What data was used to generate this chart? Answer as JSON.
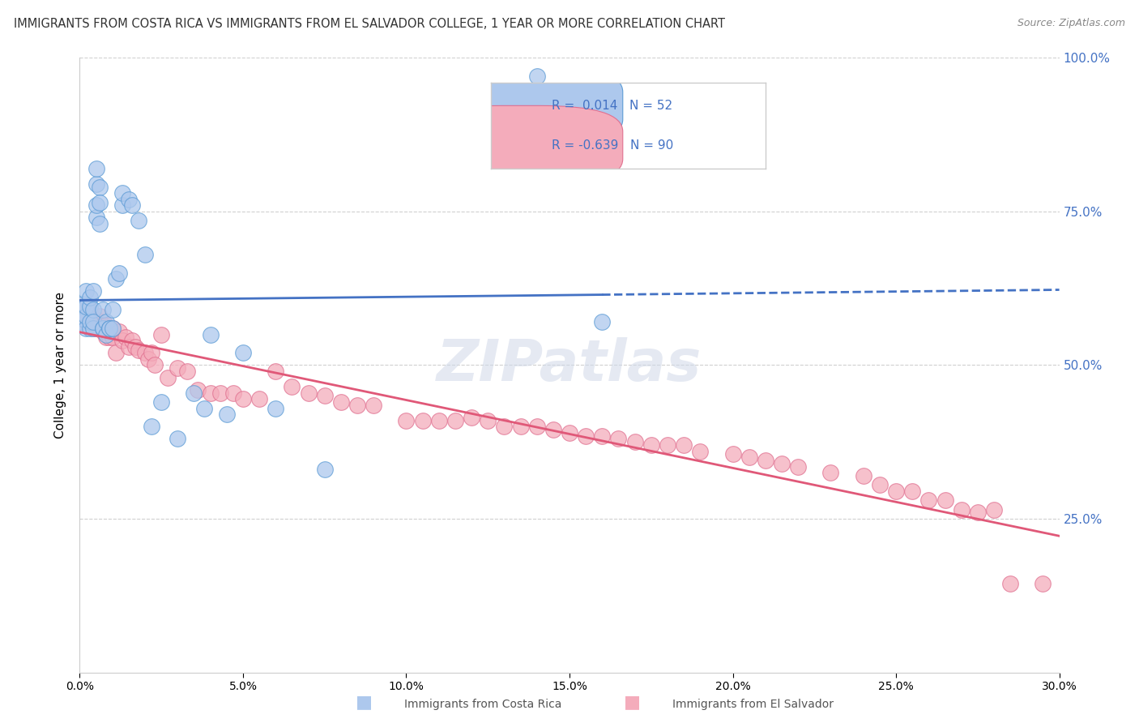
{
  "title": "IMMIGRANTS FROM COSTA RICA VS IMMIGRANTS FROM EL SALVADOR COLLEGE, 1 YEAR OR MORE CORRELATION CHART",
  "source": "Source: ZipAtlas.com",
  "ylabel": "College, 1 year or more",
  "ylabel_right_ticks": [
    "100.0%",
    "75.0%",
    "50.0%",
    "25.0%"
  ],
  "ylabel_right_vals": [
    1.0,
    0.75,
    0.5,
    0.25
  ],
  "xmin": 0.0,
  "xmax": 0.3,
  "ymin": 0.0,
  "ymax": 1.0,
  "R_blue": 0.014,
  "N_blue": 52,
  "R_pink": -0.639,
  "N_pink": 90,
  "blue_color": "#adc8ed",
  "blue_edge_color": "#5b9bd5",
  "blue_line_color": "#4472c4",
  "pink_color": "#f4acbb",
  "pink_edge_color": "#e07090",
  "pink_line_color": "#e05878",
  "blue_scatter_x": [
    0.0005,
    0.001,
    0.001,
    0.0015,
    0.002,
    0.002,
    0.002,
    0.002,
    0.003,
    0.003,
    0.003,
    0.003,
    0.004,
    0.004,
    0.004,
    0.004,
    0.005,
    0.005,
    0.005,
    0.005,
    0.006,
    0.006,
    0.006,
    0.007,
    0.007,
    0.007,
    0.008,
    0.008,
    0.009,
    0.009,
    0.01,
    0.01,
    0.011,
    0.012,
    0.013,
    0.013,
    0.015,
    0.016,
    0.018,
    0.02,
    0.022,
    0.025,
    0.03,
    0.035,
    0.038,
    0.04,
    0.045,
    0.05,
    0.06,
    0.075,
    0.14,
    0.16
  ],
  "blue_scatter_y": [
    0.57,
    0.595,
    0.6,
    0.575,
    0.56,
    0.58,
    0.62,
    0.595,
    0.56,
    0.595,
    0.61,
    0.57,
    0.56,
    0.59,
    0.62,
    0.57,
    0.795,
    0.82,
    0.74,
    0.76,
    0.73,
    0.79,
    0.765,
    0.56,
    0.59,
    0.56,
    0.55,
    0.57,
    0.56,
    0.56,
    0.56,
    0.59,
    0.64,
    0.65,
    0.76,
    0.78,
    0.77,
    0.76,
    0.735,
    0.68,
    0.4,
    0.44,
    0.38,
    0.455,
    0.43,
    0.55,
    0.42,
    0.52,
    0.43,
    0.33,
    0.97,
    0.57
  ],
  "pink_scatter_x": [
    0.0005,
    0.001,
    0.001,
    0.002,
    0.002,
    0.002,
    0.003,
    0.003,
    0.003,
    0.004,
    0.004,
    0.004,
    0.005,
    0.005,
    0.005,
    0.006,
    0.006,
    0.007,
    0.007,
    0.008,
    0.008,
    0.009,
    0.009,
    0.01,
    0.01,
    0.011,
    0.012,
    0.013,
    0.014,
    0.015,
    0.016,
    0.017,
    0.018,
    0.02,
    0.021,
    0.022,
    0.023,
    0.025,
    0.027,
    0.03,
    0.033,
    0.036,
    0.04,
    0.043,
    0.047,
    0.05,
    0.055,
    0.06,
    0.065,
    0.07,
    0.075,
    0.08,
    0.085,
    0.09,
    0.1,
    0.105,
    0.11,
    0.115,
    0.12,
    0.125,
    0.13,
    0.135,
    0.14,
    0.145,
    0.15,
    0.155,
    0.16,
    0.165,
    0.17,
    0.175,
    0.18,
    0.185,
    0.19,
    0.2,
    0.205,
    0.21,
    0.215,
    0.22,
    0.23,
    0.24,
    0.245,
    0.25,
    0.255,
    0.26,
    0.265,
    0.27,
    0.275,
    0.28,
    0.285,
    0.295
  ],
  "pink_scatter_y": [
    0.585,
    0.575,
    0.595,
    0.57,
    0.59,
    0.57,
    0.575,
    0.59,
    0.57,
    0.575,
    0.565,
    0.56,
    0.56,
    0.575,
    0.56,
    0.565,
    0.58,
    0.555,
    0.565,
    0.545,
    0.565,
    0.545,
    0.555,
    0.545,
    0.56,
    0.52,
    0.555,
    0.54,
    0.545,
    0.53,
    0.54,
    0.53,
    0.525,
    0.52,
    0.51,
    0.52,
    0.5,
    0.55,
    0.48,
    0.495,
    0.49,
    0.46,
    0.455,
    0.455,
    0.455,
    0.445,
    0.445,
    0.49,
    0.465,
    0.455,
    0.45,
    0.44,
    0.435,
    0.435,
    0.41,
    0.41,
    0.41,
    0.41,
    0.415,
    0.41,
    0.4,
    0.4,
    0.4,
    0.395,
    0.39,
    0.385,
    0.385,
    0.38,
    0.375,
    0.37,
    0.37,
    0.37,
    0.36,
    0.355,
    0.35,
    0.345,
    0.34,
    0.335,
    0.325,
    0.32,
    0.305,
    0.295,
    0.295,
    0.28,
    0.28,
    0.265,
    0.26,
    0.265,
    0.145,
    0.145
  ],
  "watermark": "ZIPatlas",
  "legend_blue_label": "Immigrants from Costa Rica",
  "legend_pink_label": "Immigrants from El Salvador",
  "grid_color": "#d0d0d0",
  "background_color": "#ffffff"
}
